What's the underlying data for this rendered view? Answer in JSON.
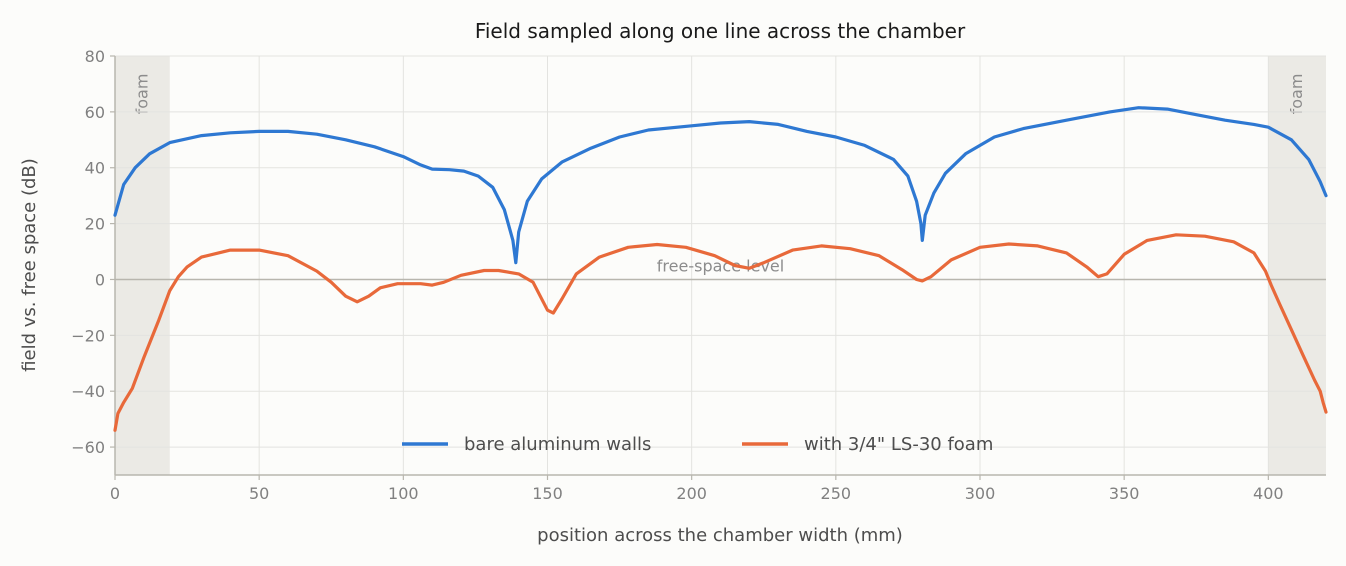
{
  "chart_data": {
    "type": "line",
    "title": "Field sampled along one line across the chamber",
    "xlabel": "position across the chamber width (mm)",
    "ylabel": "field vs. free space (dB)",
    "xlim": [
      0,
      420
    ],
    "ylim": [
      -70,
      80
    ],
    "xticks": [
      0,
      50,
      100,
      150,
      200,
      250,
      300,
      350,
      400
    ],
    "yticks": [
      -60,
      -40,
      -20,
      0,
      20,
      40,
      60,
      80
    ],
    "grid": true,
    "legend_position": "bottom-center",
    "reference_line": {
      "y": 0,
      "label": "free-space level"
    },
    "shaded_regions": [
      {
        "x0": 0,
        "x1": 19,
        "label": "foam"
      },
      {
        "x0": 400,
        "x1": 420,
        "label": "foam"
      }
    ],
    "series": [
      {
        "name": "bare aluminum walls",
        "color": "#2e78d2",
        "points": [
          [
            0,
            23
          ],
          [
            3,
            34
          ],
          [
            7,
            40
          ],
          [
            12,
            45
          ],
          [
            19,
            49
          ],
          [
            30,
            51.5
          ],
          [
            40,
            52.5
          ],
          [
            50,
            53
          ],
          [
            60,
            53
          ],
          [
            70,
            52
          ],
          [
            80,
            50
          ],
          [
            90,
            47.5
          ],
          [
            100,
            44
          ],
          [
            106,
            41
          ],
          [
            110,
            39.5
          ],
          [
            116,
            39.3
          ],
          [
            121,
            38.8
          ],
          [
            126,
            37
          ],
          [
            131,
            33
          ],
          [
            135,
            25
          ],
          [
            138,
            14
          ],
          [
            139,
            6
          ],
          [
            140,
            17
          ],
          [
            143,
            28
          ],
          [
            148,
            36
          ],
          [
            155,
            42
          ],
          [
            165,
            47
          ],
          [
            175,
            51
          ],
          [
            185,
            53.5
          ],
          [
            200,
            55
          ],
          [
            210,
            56
          ],
          [
            220,
            56.5
          ],
          [
            230,
            55.5
          ],
          [
            240,
            53
          ],
          [
            250,
            51
          ],
          [
            260,
            48
          ],
          [
            270,
            43
          ],
          [
            275,
            37
          ],
          [
            278,
            28
          ],
          [
            279.5,
            20
          ],
          [
            280,
            14
          ],
          [
            281,
            23
          ],
          [
            284,
            31
          ],
          [
            288,
            38
          ],
          [
            295,
            45
          ],
          [
            305,
            51
          ],
          [
            315,
            54
          ],
          [
            330,
            57
          ],
          [
            345,
            60
          ],
          [
            355,
            61.5
          ],
          [
            365,
            61
          ],
          [
            375,
            59
          ],
          [
            385,
            57
          ],
          [
            395,
            55.5
          ],
          [
            400,
            54.5
          ],
          [
            408,
            50
          ],
          [
            414,
            43
          ],
          [
            418,
            35
          ],
          [
            420,
            30
          ]
        ]
      },
      {
        "name": "with 3/4\" LS-30 foam",
        "color": "#e8693a",
        "points": [
          [
            0,
            -54
          ],
          [
            1,
            -48
          ],
          [
            3,
            -44
          ],
          [
            6,
            -39
          ],
          [
            10,
            -28
          ],
          [
            15,
            -15
          ],
          [
            19,
            -4
          ],
          [
            22,
            1
          ],
          [
            25,
            4.5
          ],
          [
            30,
            8
          ],
          [
            40,
            10.5
          ],
          [
            50,
            10.5
          ],
          [
            60,
            8.5
          ],
          [
            70,
            3
          ],
          [
            75,
            -1
          ],
          [
            80,
            -6
          ],
          [
            84,
            -8
          ],
          [
            88,
            -6
          ],
          [
            92,
            -3
          ],
          [
            98,
            -1.5
          ],
          [
            106,
            -1.5
          ],
          [
            110,
            -2
          ],
          [
            114,
            -1
          ],
          [
            120,
            1.5
          ],
          [
            128,
            3.2
          ],
          [
            133,
            3.2
          ],
          [
            140,
            2
          ],
          [
            145,
            -1
          ],
          [
            150,
            -11
          ],
          [
            152,
            -12
          ],
          [
            155,
            -7
          ],
          [
            160,
            2
          ],
          [
            168,
            8
          ],
          [
            178,
            11.5
          ],
          [
            188,
            12.5
          ],
          [
            198,
            11.5
          ],
          [
            208,
            8.5
          ],
          [
            215,
            5
          ],
          [
            220,
            4
          ],
          [
            225,
            6
          ],
          [
            235,
            10.5
          ],
          [
            245,
            12
          ],
          [
            255,
            11
          ],
          [
            265,
            8.5
          ],
          [
            273,
            3.5
          ],
          [
            278,
            0
          ],
          [
            280,
            -0.5
          ],
          [
            283,
            1
          ],
          [
            290,
            7
          ],
          [
            300,
            11.5
          ],
          [
            310,
            12.7
          ],
          [
            320,
            12
          ],
          [
            330,
            9.5
          ],
          [
            337,
            4.5
          ],
          [
            341,
            1
          ],
          [
            344,
            2
          ],
          [
            350,
            9
          ],
          [
            358,
            14
          ],
          [
            368,
            16
          ],
          [
            378,
            15.5
          ],
          [
            388,
            13.5
          ],
          [
            395,
            9.5
          ],
          [
            399,
            3
          ],
          [
            401,
            -2
          ],
          [
            404,
            -9
          ],
          [
            408,
            -18
          ],
          [
            412,
            -27
          ],
          [
            416,
            -36
          ],
          [
            418,
            -40
          ],
          [
            419,
            -44
          ],
          [
            420,
            -47.5
          ]
        ]
      }
    ]
  }
}
